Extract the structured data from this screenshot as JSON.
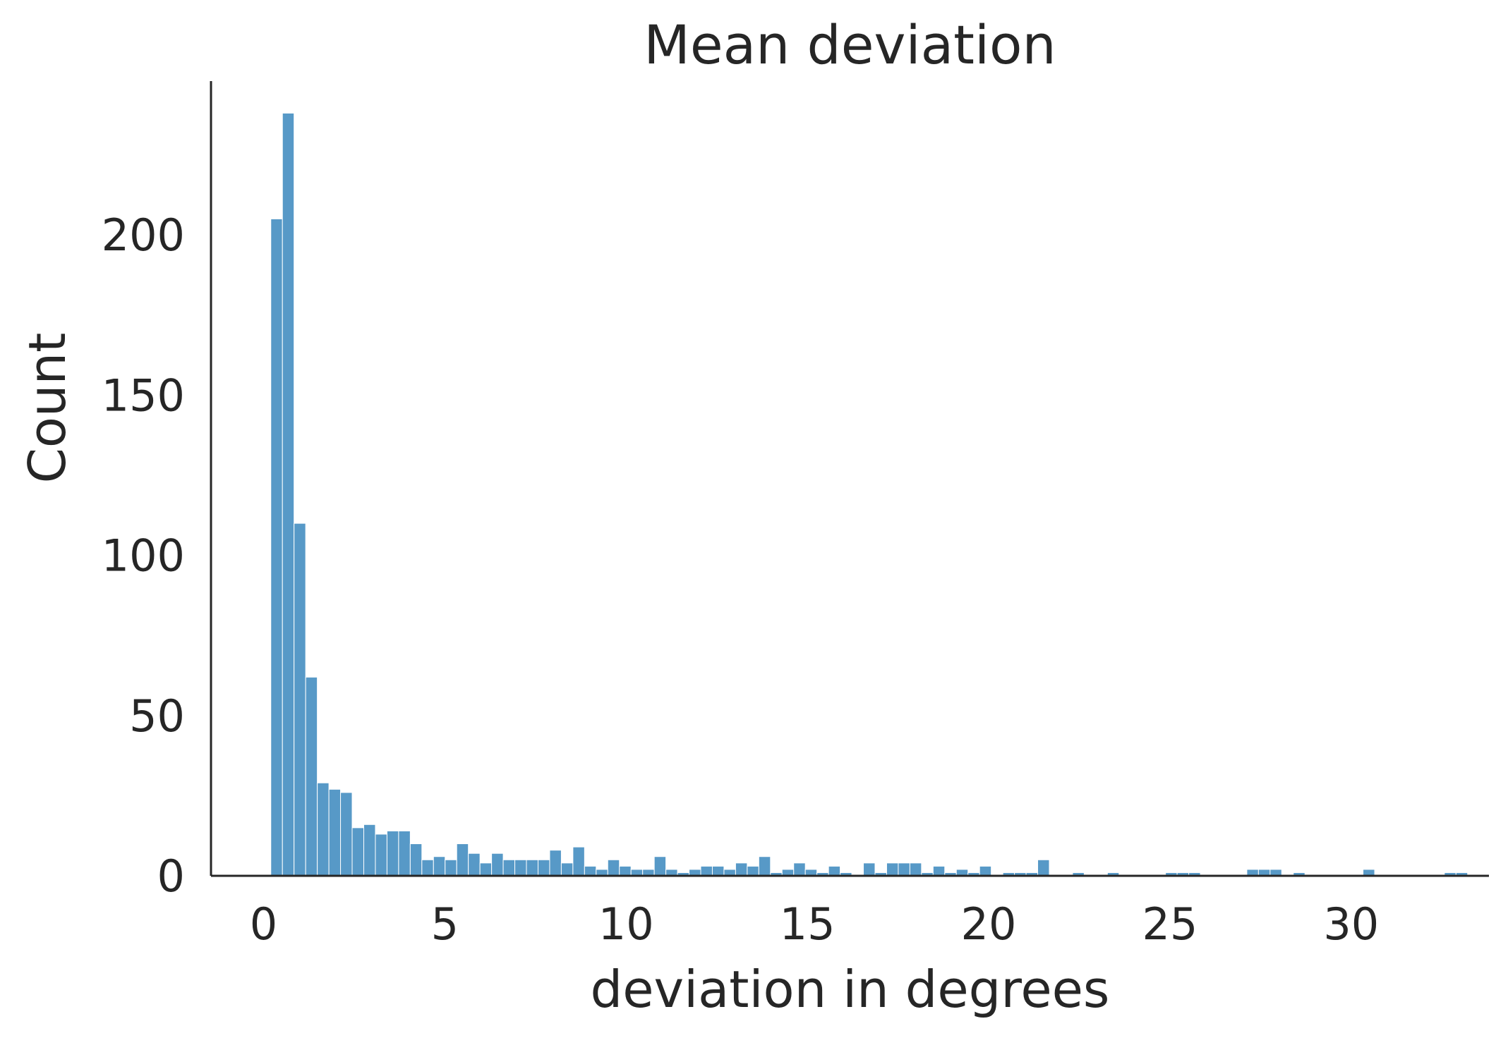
{
  "chart_data": {
    "type": "bar",
    "subtype": "histogram",
    "title": "Mean deviation",
    "xlabel": "deviation in degrees",
    "ylabel": "Count",
    "xlim": [
      -1.45,
      33.8
    ],
    "ylim": [
      0,
      248
    ],
    "xticks": [
      0,
      5,
      10,
      15,
      20,
      25,
      30
    ],
    "yticks": [
      0,
      50,
      100,
      150,
      200
    ],
    "grid": false,
    "bar_color": "#5799C7",
    "bin_start": 0.2,
    "bin_width": 0.3205,
    "values": [
      205,
      238,
      110,
      62,
      29,
      27,
      26,
      15,
      16,
      13,
      14,
      14,
      10,
      5,
      6,
      5,
      10,
      7,
      4,
      7,
      5,
      5,
      5,
      5,
      8,
      4,
      9,
      3,
      2,
      5,
      3,
      2,
      2,
      6,
      2,
      1,
      2,
      3,
      3,
      2,
      4,
      3,
      6,
      1,
      2,
      4,
      2,
      1,
      3,
      1,
      0,
      4,
      1,
      4,
      4,
      4,
      1,
      3,
      1,
      2,
      1,
      3,
      0,
      1,
      1,
      1,
      5,
      0,
      0,
      1,
      0,
      0,
      1,
      0,
      0,
      0,
      0,
      1,
      1,
      1,
      0,
      0,
      0,
      0,
      2,
      2,
      2,
      0,
      1,
      0,
      0,
      0,
      0,
      0,
      2,
      0,
      0,
      0,
      0,
      0,
      0,
      1,
      1
    ]
  }
}
